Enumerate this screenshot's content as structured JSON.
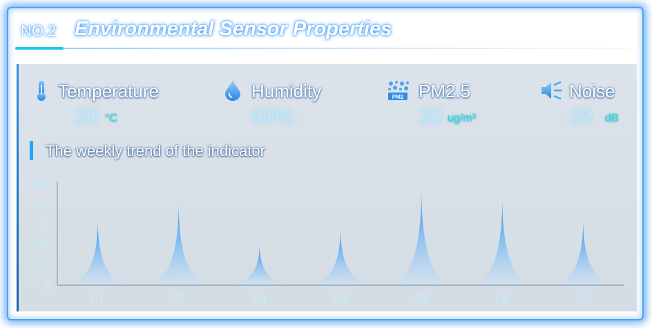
{
  "header": {
    "number": "NO.2",
    "title": "Environmental Sensor Properties"
  },
  "metrics": [
    {
      "label": "Temperature",
      "value": "20",
      "unit": "°C",
      "icon": "thermometer-icon"
    },
    {
      "label": "Humidity",
      "value": "60%",
      "unit": "",
      "icon": "water-drop-icon"
    },
    {
      "label": "PM2.5",
      "value": "20",
      "unit": "ug/m³",
      "icon": "pm25-particles-icon"
    },
    {
      "label": "Noise",
      "value": "35",
      "unit": "dB",
      "icon": "speaker-noise-icon"
    }
  ],
  "trend": {
    "title": "The weekly trend of the indicator"
  },
  "colors": {
    "accent": "#1fa7f2",
    "peak_top": "#1e8cf0",
    "label": "#c6ecfa"
  },
  "chart_data": {
    "type": "area",
    "categories": [
      "01",
      "02",
      "03",
      "04",
      "05",
      "06",
      "07"
    ],
    "values": [
      65,
      82,
      40,
      57,
      96,
      87,
      65
    ],
    "ylim": [
      0,
      100
    ],
    "yticks": [
      "0",
      "20",
      "40",
      "60",
      "80",
      "100"
    ],
    "title": "",
    "xlabel": "",
    "ylabel": ""
  }
}
